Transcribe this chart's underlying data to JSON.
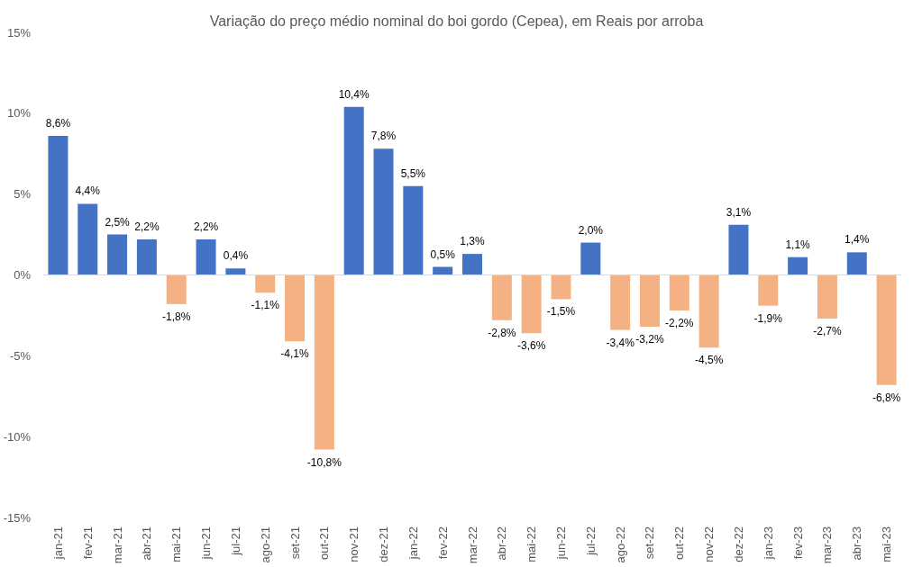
{
  "chart_data": {
    "type": "bar",
    "title": "Variação do preço médio nominal do boi gordo (Cepea), em Reais por arroba",
    "categories": [
      "jan-21",
      "fev-21",
      "mar-21",
      "abr-21",
      "mai-21",
      "jun-21",
      "jul-21",
      "ago-21",
      "set-21",
      "out-21",
      "nov-21",
      "dez-21",
      "jan-22",
      "fev-22",
      "mar-22",
      "abr-22",
      "mai-22",
      "jun-22",
      "jul-22",
      "ago-22",
      "set-22",
      "out-22",
      "nov-22",
      "dez-22",
      "jan-23",
      "fev-23",
      "mar-23",
      "abr-23",
      "mai-23"
    ],
    "values": [
      8.6,
      4.4,
      2.5,
      2.2,
      -1.8,
      2.2,
      0.4,
      -1.1,
      -4.1,
      -10.8,
      10.4,
      7.8,
      5.5,
      0.5,
      1.3,
      -2.8,
      -3.6,
      -1.5,
      2.0,
      -3.4,
      -3.2,
      -2.2,
      -4.5,
      3.1,
      -1.9,
      1.1,
      -2.7,
      1.4,
      -6.8
    ],
    "colors": [
      "#4472c4",
      "#4472c4",
      "#4472c4",
      "#4472c4",
      "#f4b183",
      "#4472c4",
      "#4472c4",
      "#f4b183",
      "#f4b183",
      "#f4b183",
      "#4472c4",
      "#4472c4",
      "#4472c4",
      "#4472c4",
      "#4472c4",
      "#f4b183",
      "#f4b183",
      "#f4b183",
      "#4472c4",
      "#f4b183",
      "#f4b183",
      "#f4b183",
      "#f4b183",
      "#4472c4",
      "#f4b183",
      "#4472c4",
      "#f4b183",
      "#4472c4",
      "#f4b183"
    ],
    "value_labels": [
      "8,6%",
      "4,4%",
      "2,5%",
      "2,2%",
      "-1,8%",
      "2,2%",
      "0,4%",
      "-1,1%",
      "-4,1%",
      "-10,8%",
      "10,4%",
      "7,8%",
      "5,5%",
      "0,5%",
      "1,3%",
      "-2,8%",
      "-3,6%",
      "-1,5%",
      "2,0%",
      "-3,4%",
      "-3,2%",
      "-2,2%",
      "-4,5%",
      "3,1%",
      "-1,9%",
      "1,1%",
      "-2,7%",
      "1,4%",
      "-6,8%"
    ],
    "ylim": [
      -15,
      15
    ],
    "yticks": [
      {
        "value": -15,
        "label": "-15%"
      },
      {
        "value": -10,
        "label": "-10%"
      },
      {
        "value": -5,
        "label": "-5%"
      },
      {
        "value": 0,
        "label": "0%"
      },
      {
        "value": 5,
        "label": "5%"
      },
      {
        "value": 10,
        "label": "10%"
      },
      {
        "value": 15,
        "label": "15%"
      }
    ],
    "ref_lines": [
      {
        "axis": "y",
        "value": 0,
        "color": "#d9d9d9"
      }
    ],
    "grid": false
  }
}
